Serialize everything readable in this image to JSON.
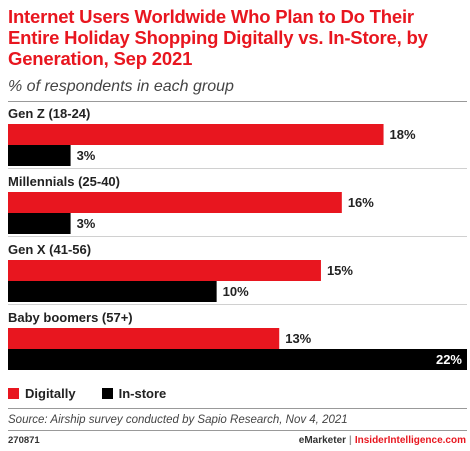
{
  "header": {
    "title": "Internet Users Worldwide Who Plan to Do Their Entire Holiday Shopping Digitally vs. In-Store, by Generation, Sep 2021",
    "subtitle": "% of respondents in each group"
  },
  "colors": {
    "digitally": "#e8161f",
    "in_store": "#000000"
  },
  "chart_data": {
    "type": "bar",
    "orientation": "horizontal",
    "title": "Internet Users Worldwide Who Plan to Do Their Entire Holiday Shopping Digitally vs. In-Store, by Generation, Sep 2021",
    "subtitle": "% of respondents in each group",
    "categories": [
      "Gen Z (18-24)",
      "Millennials (25-40)",
      "Gen X (41-56)",
      "Baby boomers (57+)"
    ],
    "series": [
      {
        "name": "Digitally",
        "values": [
          18,
          16,
          15,
          13
        ],
        "labels": [
          "18%",
          "16%",
          "15%",
          "13%"
        ]
      },
      {
        "name": "In-store",
        "values": [
          3,
          3,
          10,
          22
        ],
        "labels": [
          "3%",
          "3%",
          "10%",
          "22%"
        ]
      }
    ],
    "xlim": [
      0,
      22
    ],
    "grid": false,
    "legend": "bottom-left"
  },
  "legend": {
    "digitally_label": "Digitally",
    "in_store_label": "In-store"
  },
  "footer": {
    "source": "Source: Airship survey conducted by Sapio Research, Nov 4, 2021",
    "chart_id": "270871",
    "brand_emarketer": "eMarketer",
    "brand_separator": "|",
    "brand_insider": "InsiderIntelligence.com"
  }
}
